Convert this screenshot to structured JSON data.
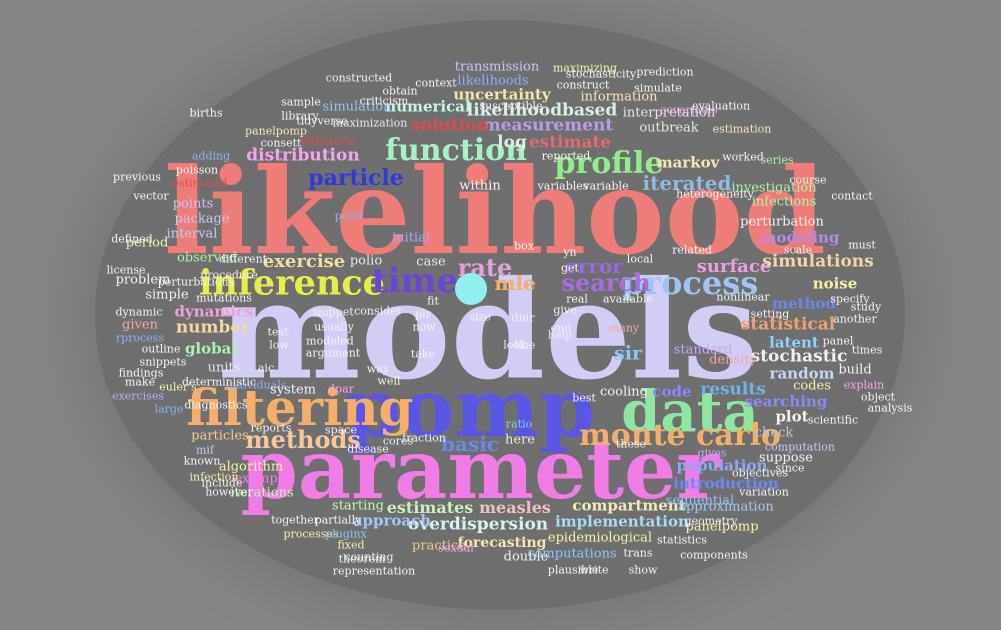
{
  "colors": {
    "background": "#858585",
    "cloud_shade": "#6f6f6f",
    "dot": "#8ff0ee"
  },
  "words": [
    {
      "text": "likelihood",
      "color": "#ee7d78"
    },
    {
      "text": "models",
      "color": "#d2cdf5"
    },
    {
      "text": "parameter",
      "color": "#f07ce6"
    },
    {
      "text": "pomp",
      "color": "#5a56e4"
    },
    {
      "text": "data",
      "color": "#8fe6a0"
    },
    {
      "text": "filtering",
      "color": "#f4ae6a"
    },
    {
      "text": "inference",
      "color": "#e6ee4a"
    },
    {
      "text": "time",
      "color": "#6a44d6"
    },
    {
      "text": "process",
      "color": "#9fc4f0"
    },
    {
      "text": "function",
      "color": "#a6f0c6"
    },
    {
      "text": "profile",
      "color": "#90ee8a"
    },
    {
      "text": "monte carlo",
      "color": "#f4ae6a"
    },
    {
      "text": "methods",
      "color": "#f4c898"
    },
    {
      "text": "search",
      "color": "#a86ce4"
    },
    {
      "text": "rate",
      "color": "#e0a2d8"
    },
    {
      "text": "particle",
      "color": "#2e3ad8"
    },
    {
      "text": "iterated",
      "color": "#90b8e0"
    },
    {
      "text": "error",
      "color": "#9a6ae0"
    },
    {
      "text": "surface",
      "color": "#e8a0e0"
    },
    {
      "text": "exercise",
      "color": "#f0e0a0"
    },
    {
      "text": "basic",
      "color": "#6a8ae8"
    },
    {
      "text": "mle",
      "color": "#f4ae6a"
    },
    {
      "text": "estimates",
      "color": "#c8f0b8"
    },
    {
      "text": "measles",
      "color": "#f0c0c0"
    },
    {
      "text": "compartment",
      "color": "#f0ebb4"
    },
    {
      "text": "overdispersion",
      "color": "#d6f3ee"
    },
    {
      "text": "implementation",
      "color": "#a6dcf0"
    },
    {
      "text": "results",
      "color": "#6fb2e6"
    },
    {
      "text": "statistical",
      "color": "#f0a06a"
    },
    {
      "text": "uncertainty",
      "color": "#f0e6a6"
    },
    {
      "text": "likelihoodbased",
      "color": "#d6f0e6"
    },
    {
      "text": "measurement",
      "color": "#b89ae6"
    },
    {
      "text": "solution",
      "color": "#e04c4c"
    },
    {
      "text": "estimate",
      "color": "#e26a72"
    },
    {
      "text": "log",
      "color": "#d6f0e6"
    },
    {
      "text": "markov",
      "color": "#f4e6b4"
    },
    {
      "text": "distribution",
      "color": "#f4a6ea"
    },
    {
      "text": "number",
      "color": "#f4d6a6"
    },
    {
      "text": "global",
      "color": "#a6f4b4"
    },
    {
      "text": "dynamics",
      "color": "#f0a0d8"
    },
    {
      "text": "simulations",
      "color": "#f4d6a6"
    },
    {
      "text": "modeling",
      "color": "#b48ae6"
    },
    {
      "text": "method",
      "color": "#6a8ae8"
    },
    {
      "text": "stochastic",
      "color": "#f0f0f0"
    },
    {
      "text": "latent",
      "color": "#8ad4f4"
    },
    {
      "text": "random",
      "color": "#c6d6f4"
    },
    {
      "text": "searching",
      "color": "#8a8af4"
    },
    {
      "text": "numerical",
      "color": "#c6f4e6"
    },
    {
      "text": "information",
      "color": "#f4e6b4"
    },
    {
      "text": "sir",
      "color": "#8ac6f4"
    },
    {
      "text": "introduction",
      "color": "#6a8af4"
    },
    {
      "text": "population",
      "color": "#8aa8f4"
    },
    {
      "text": "panelpomp",
      "color": "#f4f0a6"
    },
    {
      "text": "code",
      "color": "#8a8af4"
    },
    {
      "text": "approach",
      "color": "#a6c4f4"
    },
    {
      "text": "forecasting",
      "color": "#f4e6b4"
    },
    {
      "text": "epidemiological",
      "color": "#f4f0a6"
    },
    {
      "text": "algorithm",
      "color": "#f4f0a6"
    },
    {
      "text": "particles",
      "color": "#f4c68a"
    },
    {
      "text": "example",
      "color": "#f07ce6"
    },
    {
      "text": "iterations",
      "color": "#c6f4b4"
    },
    {
      "text": "starting",
      "color": "#c6f4b4"
    },
    {
      "text": "polio",
      "color": "#e6e6e6"
    },
    {
      "text": "case",
      "color": "#e6e6e6"
    },
    {
      "text": "units",
      "color": "#e6e6e6"
    },
    {
      "text": "interval",
      "color": "#c6c6f4"
    },
    {
      "text": "package",
      "color": "#c6c6f4"
    },
    {
      "text": "points",
      "color": "#c6c6f4"
    },
    {
      "text": "observed",
      "color": "#a6f4a6"
    },
    {
      "text": "initial",
      "color": "#a6a6f4"
    },
    {
      "text": "mif",
      "color": "#c6c6f4"
    },
    {
      "text": "simulation",
      "color": "#8ac6f4"
    },
    {
      "text": "variance",
      "color": "#e04c4c"
    },
    {
      "text": "panelpomp",
      "color": "#f4e6b4"
    },
    {
      "text": "adding",
      "color": "#8ab0f4"
    },
    {
      "text": "likelihoods",
      "color": "#8ab0f4"
    },
    {
      "text": "transmission",
      "color": "#c6c6f4"
    },
    {
      "text": "maximization",
      "color": "#e6e6e6"
    },
    {
      "text": "outbreak",
      "color": "#e6e6e6"
    },
    {
      "text": "interpretation",
      "color": "#e6e6e6"
    },
    {
      "text": "estimation",
      "color": "#f4e6b4"
    },
    {
      "text": "investigation",
      "color": "#a6f4a6"
    },
    {
      "text": "infections",
      "color": "#a6f4a6"
    },
    {
      "text": "noise",
      "color": "#f4f0a6"
    },
    {
      "text": "practice",
      "color": "#f4c68a"
    },
    {
      "text": "double",
      "color": "#f4f0f0"
    },
    {
      "text": "computations",
      "color": "#8ac6f4"
    },
    {
      "text": "approximation",
      "color": "#a6c6f4"
    },
    {
      "text": "sequential",
      "color": "#8ac6f4"
    },
    {
      "text": "geometry",
      "color": "#f4f0f0"
    },
    {
      "text": "processes",
      "color": "#f4f0a6"
    },
    {
      "text": "pluginx",
      "color": "#8ac6f4"
    },
    {
      "text": "cooling",
      "color": "#f4f0f0"
    },
    {
      "text": "fraction",
      "color": "#f4f0f0"
    },
    {
      "text": "here",
      "color": "#e6e6e6"
    },
    {
      "text": "ratio",
      "color": "#8ac6f4"
    },
    {
      "text": "local",
      "color": "#f4f0f0"
    },
    {
      "text": "space",
      "color": "#f4f0f0"
    },
    {
      "text": "codes",
      "color": "#f4f0a6"
    },
    {
      "text": "plot",
      "color": "#f4f0f0"
    },
    {
      "text": "check",
      "color": "#c6c6c6"
    },
    {
      "text": "suppose",
      "color": "#f4f0f0"
    },
    {
      "text": "standard",
      "color": "#c6a6f4"
    },
    {
      "text": "density",
      "color": "#f4a6a6"
    },
    {
      "text": "computation",
      "color": "#c6c6f4"
    },
    {
      "text": "since",
      "color": "#f4f0f0"
    },
    {
      "text": "given",
      "color": "#f4a6a6"
    },
    {
      "text": "simple",
      "color": "#f4f0f0"
    },
    {
      "text": "outline",
      "color": "#f4f0f0"
    },
    {
      "text": "rprocess",
      "color": "#8ab0f4"
    },
    {
      "text": "dynamic",
      "color": "#f4f0f0"
    },
    {
      "text": "period",
      "color": "#f4f0a6"
    },
    {
      "text": "problem",
      "color": "#f4f0f0"
    },
    {
      "text": "different",
      "color": "#f4f0f0"
    },
    {
      "text": "euler's",
      "color": "#f4f0a6"
    },
    {
      "text": "individuals",
      "color": "#8ab0f4"
    },
    {
      "text": "system",
      "color": "#f4f0f0"
    },
    {
      "text": "dpar",
      "color": "#f4a6ea"
    },
    {
      "text": "reports",
      "color": "#f4f0f0"
    },
    {
      "text": "large",
      "color": "#8ab0f4"
    },
    {
      "text": "gives",
      "color": "#c6a6f4"
    },
    {
      "text": "known",
      "color": "#f4f0f0"
    },
    {
      "text": "infection",
      "color": "#f4f0a6"
    },
    {
      "text": "however",
      "color": "#f4f0f0"
    },
    {
      "text": "include",
      "color": "#f4f0f0"
    },
    {
      "text": "together",
      "color": "#f4f0f0"
    },
    {
      "text": "partially",
      "color": "#f4f0f0"
    },
    {
      "text": "fixed",
      "color": "#f4f0a6"
    },
    {
      "text": "theorem",
      "color": "#f4f0f0"
    },
    {
      "text": "consett",
      "color": "#f4f0f0"
    },
    {
      "text": "estimated",
      "color": "#e04c4c"
    },
    {
      "text": "poisson",
      "color": "#f4f0f0"
    },
    {
      "text": "variables",
      "color": "#f4f0f0"
    },
    {
      "text": "variable",
      "color": "#f4f0f0"
    },
    {
      "text": "reported",
      "color": "#f4f0f0"
    },
    {
      "text": "series",
      "color": "#a6f4a6"
    },
    {
      "text": "course",
      "color": "#f4f0f0"
    },
    {
      "text": "contact",
      "color": "#f4f0f0"
    },
    {
      "text": "worked",
      "color": "#f4f0f0"
    },
    {
      "text": "covariates",
      "color": "#f4a6ea"
    },
    {
      "text": "evaluation",
      "color": "#f4f0f0"
    },
    {
      "text": "within",
      "color": "#f4f0f0"
    },
    {
      "text": "point",
      "color": "#8ab0f4"
    },
    {
      "text": "related",
      "color": "#f4f0f0"
    },
    {
      "text": "available",
      "color": "#f4f0f0"
    },
    {
      "text": "many",
      "color": "#f4a6a6"
    },
    {
      "text": "these",
      "color": "#f4f0f0"
    },
    {
      "text": "scale",
      "color": "#f4f0f0"
    },
    {
      "text": "build",
      "color": "#f4f0f0"
    },
    {
      "text": "panel",
      "color": "#f4f0f0"
    },
    {
      "text": "times",
      "color": "#f4f0f0"
    },
    {
      "text": "another",
      "color": "#f4f0f0"
    },
    {
      "text": "explain",
      "color": "#f4a6ea"
    },
    {
      "text": "object",
      "color": "#f4f0f0"
    },
    {
      "text": "analysis",
      "color": "#f4f0f0"
    },
    {
      "text": "scientific",
      "color": "#f4f0f0"
    },
    {
      "text": "setting",
      "color": "#f4f0f0"
    },
    {
      "text": "nonlinear",
      "color": "#f4f0f0"
    },
    {
      "text": "perturbation",
      "color": "#f4f0f0"
    },
    {
      "text": "specify",
      "color": "#f4f0f0"
    },
    {
      "text": "study",
      "color": "#f4f0f0"
    },
    {
      "text": "must",
      "color": "#f4f0f0"
    },
    {
      "text": "exercises",
      "color": "#c6a6f4"
    },
    {
      "text": "make",
      "color": "#f4f0f0"
    },
    {
      "text": "findings",
      "color": "#f4f0f0"
    },
    {
      "text": "snippets",
      "color": "#f4f0f0"
    },
    {
      "text": "license",
      "color": "#f4f0f0"
    },
    {
      "text": "defined",
      "color": "#f4f0f0"
    },
    {
      "text": "vector",
      "color": "#f4f0f0"
    },
    {
      "text": "previous",
      "color": "#f4f0f0"
    },
    {
      "text": "births",
      "color": "#f4f0f0"
    },
    {
      "text": "sample",
      "color": "#f4f0f0"
    },
    {
      "text": "obtain",
      "color": "#f4f0f0"
    },
    {
      "text": "criticism",
      "color": "#f4f0f0"
    },
    {
      "text": "context",
      "color": "#f4f0f0"
    },
    {
      "text": "constructed",
      "color": "#f4f0f0"
    },
    {
      "text": "stochasticity",
      "color": "#f4f0f0"
    },
    {
      "text": "simulate",
      "color": "#f4f0f0"
    },
    {
      "text": "maximizing",
      "color": "#f4f0a6"
    },
    {
      "text": "construct",
      "color": "#f4f0f0"
    },
    {
      "text": "prediction",
      "color": "#f4f0f0"
    },
    {
      "text": "susceptible",
      "color": "#f4f0f0"
    },
    {
      "text": "library",
      "color": "#f4f0f0"
    },
    {
      "text": "tidyverse",
      "color": "#f4f0f0"
    },
    {
      "text": "heterogeneity",
      "color": "#f4f0f0"
    },
    {
      "text": "perturbations",
      "color": "#f4f0f0"
    },
    {
      "text": "mutations",
      "color": "#f4f0f0"
    },
    {
      "text": "procedure",
      "color": "#f4f0f0"
    },
    {
      "text": "deterministic",
      "color": "#f4f0f0"
    },
    {
      "text": "cores",
      "color": "#f4f0f0"
    },
    {
      "text": "disease",
      "color": "#f4f0f0"
    },
    {
      "text": "sexual",
      "color": "#f4a6ea"
    },
    {
      "text": "trans",
      "color": "#f4f0f0"
    },
    {
      "text": "statistics",
      "color": "#f4f0f0"
    },
    {
      "text": "write",
      "color": "#f4f0f0"
    },
    {
      "text": "plausible",
      "color": "#f4f0f0"
    },
    {
      "text": "show",
      "color": "#f4f0f0"
    },
    {
      "text": "components",
      "color": "#f4f0f0"
    },
    {
      "text": "counting",
      "color": "#f4f0f0"
    },
    {
      "text": "representation",
      "color": "#f4f0f0"
    },
    {
      "text": "variation",
      "color": "#f4f0f0"
    },
    {
      "text": "objectives",
      "color": "#f4f0f0"
    },
    {
      "text": "diagnostics",
      "color": "#f4f0f0"
    },
    {
      "text": "consider",
      "color": "#f4f0f0"
    },
    {
      "text": "snippet",
      "color": "#f4f0f0"
    },
    {
      "text": "usually",
      "color": "#f4f0f0"
    },
    {
      "text": "modeled",
      "color": "#f4f0f0"
    },
    {
      "text": "argument",
      "color": "#f4f0f0"
    },
    {
      "text": "well",
      "color": "#f4f0f0"
    },
    {
      "text": "take",
      "color": "#f4f0f0"
    },
    {
      "text": "way",
      "color": "#f4f0f0"
    },
    {
      "text": "look",
      "color": "#f4f0f0"
    },
    {
      "text": "line",
      "color": "#f4f0f0"
    },
    {
      "text": "now",
      "color": "#f4f0f0"
    },
    {
      "text": "give",
      "color": "#f4f0f0"
    },
    {
      "text": "box",
      "color": "#f4f0f0"
    },
    {
      "text": "size",
      "color": "#f4f0f0"
    },
    {
      "text": "pir",
      "color": "#f4f0f0"
    },
    {
      "text": "dnir",
      "color": "#f4f0f0"
    },
    {
      "text": "yn",
      "color": "#f4f0f0"
    },
    {
      "text": "end",
      "color": "#f4f0f0"
    },
    {
      "text": "real",
      "color": "#f4f0f0"
    },
    {
      "text": "fit",
      "color": "#f4f0f0"
    },
    {
      "text": "test",
      "color": "#f4f0f0"
    },
    {
      "text": "low",
      "color": "#f4f0f0"
    },
    {
      "text": "aic",
      "color": "#f4f0f0"
    },
    {
      "text": "best",
      "color": "#f4f0f0"
    },
    {
      "text": "get",
      "color": "#f4f0f0"
    },
    {
      "text": "help",
      "color": "#f4f0f0"
    },
    {
      "text": "let's",
      "color": "#f4f0f0"
    },
    {
      "text": "we'll",
      "color": "#f4f0f0"
    },
    {
      "text": "share",
      "color": "#f4f0f0"
    },
    {
      "text": "higher",
      "color": "#f4f0f0"
    },
    {
      "text": "dual",
      "color": "#f4f0f0"
    },
    {
      "text": "net",
      "color": "#f4f0f0"
    },
    {
      "text": "since",
      "color": "#f4f0f0"
    }
  ]
}
